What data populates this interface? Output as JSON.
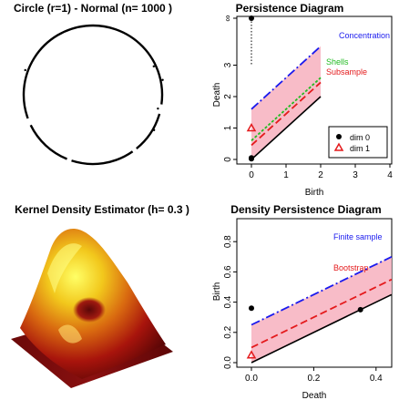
{
  "colors": {
    "band": "#f8bcc8",
    "blue": "#1a1aee",
    "green": "#22bb22",
    "red": "#e41a1c",
    "black": "#000000"
  },
  "panels": {
    "circle": {
      "title": "Circle (r=1) - Normal (n= 1000 )"
    },
    "kde": {
      "title": "Kernel Density Estimator (h= 0.3 )"
    }
  },
  "chart_data": [
    {
      "type": "scatter",
      "title": "Persistence Diagram",
      "xlabel": "Birth",
      "ylabel": "Death",
      "xlim": [
        0,
        4
      ],
      "ylim": [
        0,
        4
      ],
      "xticks": [
        "0",
        "1",
        "2",
        "3",
        "4"
      ],
      "yticks": [
        "0",
        "1",
        "2",
        "3",
        "∞"
      ],
      "grid": false,
      "legend_position": "lower-right",
      "points": [
        {
          "series": "dim 0",
          "birth": 0,
          "death": 0.05
        },
        {
          "series": "dim 0",
          "birth": 0,
          "death": 0.02
        },
        {
          "series": "dim 0",
          "birth": 0,
          "death": "∞"
        },
        {
          "series": "dim 1",
          "birth": 0,
          "death": 1.0
        }
      ],
      "bands": [
        {
          "label": "Concentration",
          "offset": 1.6
        },
        {
          "label": "Shells",
          "offset": 0.6
        },
        {
          "label": "Subsample",
          "offset": 0.45
        }
      ],
      "band_x_range": [
        0,
        2
      ],
      "legend": [
        "dim 0",
        "dim 1"
      ]
    },
    {
      "type": "scatter",
      "title": "Density Persistence Diagram",
      "xlabel": "Death",
      "ylabel": "Birth",
      "xlim": [
        0,
        0.45
      ],
      "ylim": [
        0,
        0.85
      ],
      "xticks": [
        "0.0",
        "0.2",
        "0.4"
      ],
      "yticks": [
        "0.0",
        "0.2",
        "0.4",
        "0.6",
        "0.8"
      ],
      "grid": false,
      "points": [
        {
          "series": "dim 0",
          "death": 0.0,
          "birth": 0.36
        },
        {
          "series": "dim 0",
          "death": 0.35,
          "birth": 0.35
        },
        {
          "series": "dim 1",
          "death": 0.0,
          "birth": 0.05
        }
      ],
      "bands": [
        {
          "label": "Finite sample",
          "offset": 0.25
        },
        {
          "label": "Bootstrap",
          "offset": 0.1
        }
      ],
      "band_x_range": [
        0,
        0.45
      ]
    }
  ]
}
